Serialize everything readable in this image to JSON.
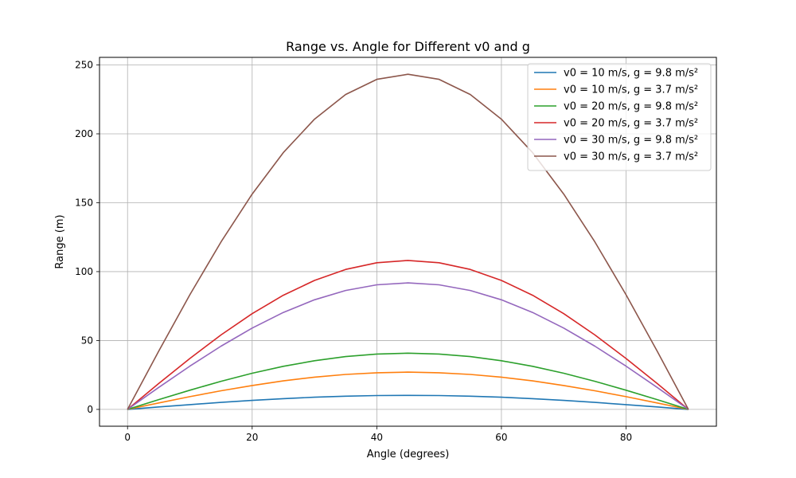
{
  "chart_data": {
    "type": "line",
    "title": "Range vs. Angle for Different v0 and g",
    "xlabel": "Angle (degrees)",
    "ylabel": "Range (m)",
    "xlim": [
      -4.5,
      94.5
    ],
    "ylim": [
      -12.2,
      255.5
    ],
    "xticks": [
      0,
      20,
      40,
      60,
      80
    ],
    "yticks": [
      0,
      50,
      100,
      150,
      200,
      250
    ],
    "grid": true,
    "legend_position": "top-right",
    "x": [
      0,
      5,
      10,
      15,
      20,
      25,
      30,
      35,
      40,
      45,
      50,
      55,
      60,
      65,
      70,
      75,
      80,
      85,
      90
    ],
    "series": [
      {
        "name": "v0 = 10 m/s, g = 9.8 m/s²",
        "color": "#1f77b4",
        "values": [
          0,
          1.77,
          3.49,
          5.1,
          6.56,
          7.82,
          8.84,
          9.59,
          10.05,
          10.2,
          10.05,
          9.59,
          8.84,
          7.82,
          6.56,
          5.1,
          3.49,
          1.77,
          0
        ]
      },
      {
        "name": "v0 = 10 m/s, g = 3.7 m/s²",
        "color": "#ff7f0e",
        "values": [
          0,
          4.69,
          9.24,
          13.51,
          17.37,
          20.71,
          23.41,
          25.39,
          26.62,
          27.03,
          26.62,
          25.39,
          23.41,
          20.71,
          17.37,
          13.51,
          9.24,
          4.69,
          0
        ]
      },
      {
        "name": "v0 = 20 m/s, g = 9.8 m/s²",
        "color": "#2ca02c",
        "values": [
          0,
          7.09,
          13.96,
          20.41,
          26.24,
          31.27,
          35.35,
          38.36,
          40.2,
          40.82,
          40.2,
          38.36,
          35.35,
          31.27,
          26.24,
          20.41,
          13.96,
          7.09,
          0
        ]
      },
      {
        "name": "v0 = 20 m/s, g = 3.7 m/s²",
        "color": "#d62728",
        "values": [
          0,
          18.77,
          36.97,
          54.05,
          69.47,
          82.83,
          93.62,
          101.58,
          106.46,
          108.11,
          106.46,
          101.58,
          93.62,
          82.83,
          69.47,
          54.05,
          36.97,
          18.77,
          0
        ]
      },
      {
        "name": "v0 = 30 m/s, g = 9.8 m/s²",
        "color": "#9467bd",
        "values": [
          0,
          15.95,
          31.41,
          45.92,
          59.03,
          70.37,
          79.53,
          86.3,
          90.44,
          91.84,
          90.44,
          86.3,
          79.53,
          70.37,
          59.03,
          45.92,
          31.41,
          15.95,
          0
        ]
      },
      {
        "name": "v0 = 30 m/s, g = 3.7 m/s²",
        "color": "#8c564b",
        "values": [
          0,
          42.24,
          83.18,
          121.62,
          156.31,
          186.36,
          210.65,
          228.55,
          239.54,
          243.24,
          239.54,
          228.55,
          210.65,
          186.36,
          156.31,
          121.62,
          83.18,
          42.24,
          0
        ]
      }
    ]
  }
}
